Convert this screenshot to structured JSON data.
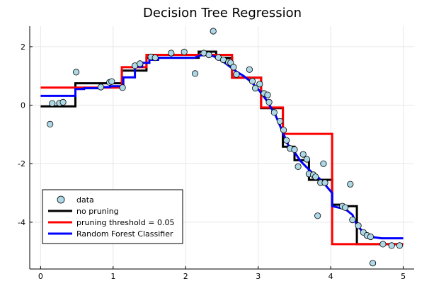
{
  "chart_data": {
    "type": "line",
    "title": "Decision Tree Regression",
    "xlabel": "",
    "ylabel": "",
    "xlim": [
      -0.15,
      5.15
    ],
    "ylim": [
      -5.6,
      2.7
    ],
    "grid": true,
    "legend_placement": "bottom-left",
    "x_ticks": [
      {
        "value": 0,
        "label": "0"
      },
      {
        "value": 1,
        "label": "1"
      },
      {
        "value": 2,
        "label": "2"
      },
      {
        "value": 3,
        "label": "3"
      },
      {
        "value": 4,
        "label": "4"
      },
      {
        "value": 5,
        "label": "5"
      }
    ],
    "y_ticks": [
      {
        "value": 2,
        "label": "2"
      },
      {
        "value": 0,
        "label": "0"
      },
      {
        "value": -2,
        "label": "-2"
      },
      {
        "value": -4,
        "label": "-4"
      }
    ],
    "scatter": {
      "name": "data",
      "color": "#add8e6",
      "points": [
        [
          0.13,
          -0.65
        ],
        [
          0.16,
          0.06
        ],
        [
          0.26,
          0.07
        ],
        [
          0.31,
          0.1
        ],
        [
          0.49,
          1.13
        ],
        [
          0.83,
          0.62
        ],
        [
          0.95,
          0.78
        ],
        [
          0.98,
          0.81
        ],
        [
          1.13,
          0.6
        ],
        [
          1.3,
          1.35
        ],
        [
          1.37,
          1.42
        ],
        [
          1.52,
          1.65
        ],
        [
          1.58,
          1.62
        ],
        [
          1.8,
          1.78
        ],
        [
          1.98,
          1.82
        ],
        [
          2.13,
          1.08
        ],
        [
          2.25,
          1.78
        ],
        [
          2.32,
          1.72
        ],
        [
          2.38,
          2.53
        ],
        [
          2.45,
          1.63
        ],
        [
          2.52,
          1.55
        ],
        [
          2.59,
          1.47
        ],
        [
          2.62,
          1.45
        ],
        [
          2.66,
          1.3
        ],
        [
          2.7,
          1.05
        ],
        [
          2.88,
          1.22
        ],
        [
          2.92,
          0.82
        ],
        [
          2.96,
          0.58
        ],
        [
          3.02,
          0.72
        ],
        [
          3.08,
          0.4
        ],
        [
          3.13,
          0.35
        ],
        [
          3.15,
          0.1
        ],
        [
          3.22,
          -0.25
        ],
        [
          3.3,
          -0.55
        ],
        [
          3.35,
          -0.85
        ],
        [
          3.39,
          -1.2
        ],
        [
          3.44,
          -1.48
        ],
        [
          3.5,
          -1.52
        ],
        [
          3.55,
          -2.1
        ],
        [
          3.62,
          -1.68
        ],
        [
          3.67,
          -1.85
        ],
        [
          3.7,
          -2.35
        ],
        [
          3.76,
          -2.38
        ],
        [
          3.79,
          -2.45
        ],
        [
          3.82,
          -3.78
        ],
        [
          3.86,
          -2.65
        ],
        [
          3.9,
          -2.0
        ],
        [
          3.92,
          -2.65
        ],
        [
          4.16,
          -3.45
        ],
        [
          4.2,
          -3.5
        ],
        [
          4.27,
          -2.7
        ],
        [
          4.3,
          -3.92
        ],
        [
          4.38,
          -4.12
        ],
        [
          4.45,
          -4.35
        ],
        [
          4.5,
          -4.45
        ],
        [
          4.55,
          -4.5
        ],
        [
          4.58,
          -5.4
        ],
        [
          4.72,
          -4.75
        ],
        [
          4.84,
          -4.8
        ],
        [
          4.95,
          -4.8
        ]
      ]
    },
    "series": [
      {
        "name": "no pruning",
        "color": "#000000",
        "x": [
          0.0,
          0.48,
          0.48,
          1.12,
          1.12,
          1.46,
          1.46,
          2.18,
          2.18,
          2.42,
          2.42,
          2.64,
          2.64,
          3.04,
          3.04,
          3.34,
          3.34,
          3.5,
          3.5,
          3.7,
          3.7,
          4.02,
          4.02,
          4.18,
          4.18,
          4.36,
          4.36,
          5.0
        ],
        "y": [
          -0.04,
          -0.04,
          0.75,
          0.75,
          1.18,
          1.18,
          1.62,
          1.62,
          1.83,
          1.83,
          1.62,
          1.62,
          0.94,
          0.94,
          -0.1,
          -0.1,
          -1.42,
          -1.42,
          -1.88,
          -1.88,
          -2.55,
          -2.55,
          -3.4,
          -3.4,
          -3.45,
          -3.45,
          -4.75,
          -4.75
        ]
      },
      {
        "name": "pruning threshold = 0.05",
        "color": "#ff0000",
        "x": [
          0.0,
          1.12,
          1.12,
          1.46,
          1.46,
          2.64,
          2.64,
          3.04,
          3.04,
          3.34,
          3.34,
          4.02,
          4.02,
          5.0
        ],
        "y": [
          0.6,
          0.6,
          1.3,
          1.3,
          1.72,
          1.72,
          0.94,
          0.94,
          -0.08,
          -0.08,
          -0.98,
          -0.98,
          -4.75,
          -4.75
        ]
      },
      {
        "name": "Random Forest Classifier",
        "color": "#0000ff",
        "x": [
          0.0,
          0.48,
          0.48,
          0.6,
          0.6,
          0.85,
          0.85,
          0.96,
          0.96,
          1.14,
          1.14,
          1.3,
          1.3,
          1.4,
          1.4,
          1.5,
          1.5,
          1.62,
          1.62,
          2.12,
          2.2,
          2.3,
          2.38,
          2.46,
          2.54,
          2.62,
          2.7,
          2.8,
          2.9,
          3.0,
          3.06,
          3.12,
          3.18,
          3.24,
          3.3,
          3.36,
          3.42,
          3.5,
          3.58,
          3.66,
          3.74,
          3.82,
          3.9,
          4.02,
          4.02,
          4.2,
          4.3,
          4.36,
          4.45,
          4.55,
          4.7,
          5.0
        ],
        "y": [
          0.32,
          0.32,
          0.55,
          0.55,
          0.58,
          0.58,
          0.62,
          0.62,
          0.65,
          0.65,
          0.95,
          0.95,
          1.32,
          1.32,
          1.45,
          1.45,
          1.55,
          1.55,
          1.62,
          1.62,
          1.7,
          1.72,
          1.68,
          1.58,
          1.45,
          1.3,
          1.15,
          1.0,
          0.8,
          0.55,
          0.35,
          0.15,
          -0.1,
          -0.35,
          -0.7,
          -1.05,
          -1.4,
          -1.6,
          -1.9,
          -2.1,
          -2.3,
          -2.45,
          -2.65,
          -3.0,
          -3.45,
          -3.55,
          -3.75,
          -4.1,
          -4.35,
          -4.5,
          -4.55,
          -4.55
        ]
      }
    ]
  }
}
